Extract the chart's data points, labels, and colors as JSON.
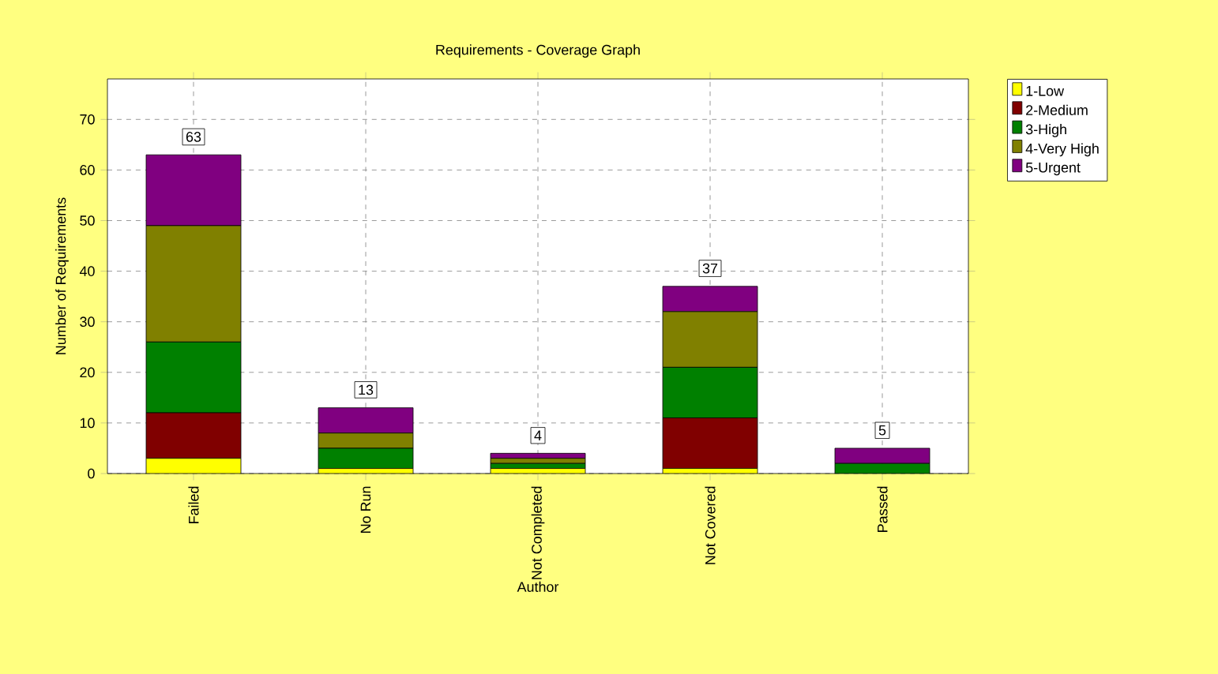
{
  "chart_data": {
    "type": "bar",
    "title": "Requirements - Coverage Graph",
    "xlabel": "Author",
    "ylabel": "Number of Requirements",
    "categories": [
      "Failed",
      "No Run",
      "Not Completed",
      "Not Covered",
      "Passed"
    ],
    "stacked": true,
    "series": [
      {
        "name": "1-Low",
        "color": "#ffff00",
        "values": [
          3,
          1,
          1,
          1,
          0
        ]
      },
      {
        "name": "2-Medium",
        "color": "#800000",
        "values": [
          9,
          0,
          0,
          10,
          0
        ]
      },
      {
        "name": "3-High",
        "color": "#008000",
        "values": [
          14,
          4,
          1,
          10,
          2
        ]
      },
      {
        "name": "4-Very High",
        "color": "#808000",
        "values": [
          23,
          3,
          1,
          11,
          0
        ]
      },
      {
        "name": "5-Urgent",
        "color": "#800080",
        "values": [
          14,
          5,
          1,
          5,
          3
        ]
      }
    ],
    "totals": [
      "63",
      "13",
      "4",
      "37",
      "5"
    ],
    "ylim": [
      0,
      78
    ],
    "yticks": [
      0,
      10,
      20,
      30,
      40,
      50,
      60,
      70
    ],
    "grid": true,
    "legend": "top right"
  }
}
